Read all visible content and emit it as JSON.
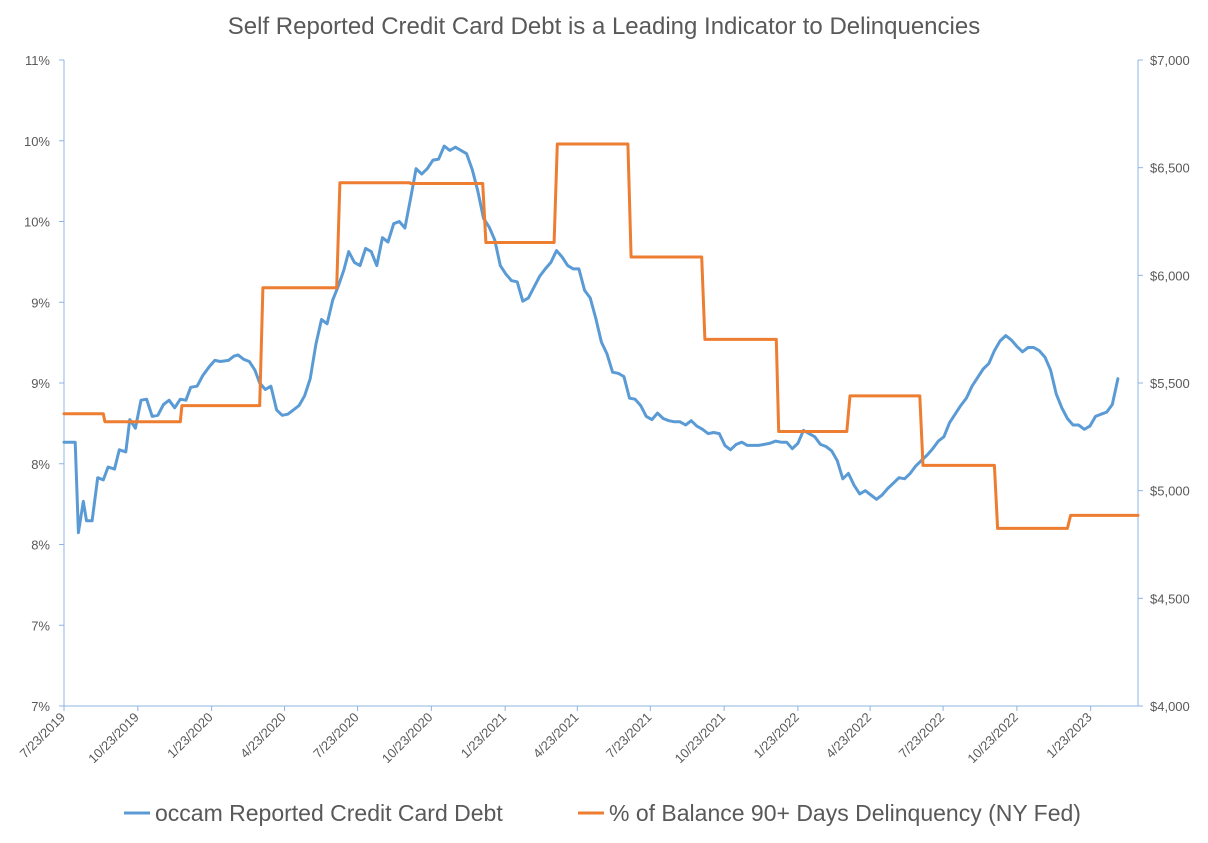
{
  "chart_data": {
    "type": "line",
    "title": "Self Reported Credit Card Debt is a Leading Indicator to Delinquencies",
    "x_type": "date",
    "x_tick_labels": [
      "7/23/2019",
      "10/23/2019",
      "1/23/2020",
      "4/23/2020",
      "7/23/2020",
      "10/23/2020",
      "1/23/2021",
      "4/23/2021",
      "7/23/2021",
      "10/23/2021",
      "1/23/2022",
      "4/23/2022",
      "7/23/2022",
      "10/23/2022",
      "1/23/2023"
    ],
    "xlim": [
      "2019-07-23",
      "2023-03-23"
    ],
    "left_axis": {
      "ylim": [
        6.5,
        10.5
      ],
      "tick_values": [
        6.5,
        7.0,
        7.5,
        8.0,
        8.5,
        9.0,
        9.5,
        10.0,
        10.5
      ],
      "tick_labels": [
        "7%",
        "7%",
        "8%",
        "8%",
        "9%",
        "9%",
        "10%",
        "10%",
        "11%"
      ]
    },
    "right_axis": {
      "ylim": [
        4000,
        7000
      ],
      "tick_values": [
        4000,
        4500,
        5000,
        5500,
        6000,
        6500,
        7000
      ],
      "tick_labels": [
        "$4,000",
        "$4,500",
        "$5,000",
        "$5,500",
        "$6,000",
        "$6,500",
        "$7,000"
      ]
    },
    "grid": false,
    "legend": "bottom",
    "series": [
      {
        "name": "occam Reported Credit Card Debt",
        "axis": "right",
        "color": "#5b9bd5",
        "points": [
          [
            "2019-07-23",
            5225
          ],
          [
            "2019-08-06",
            5225
          ],
          [
            "2019-08-10",
            4805
          ],
          [
            "2019-08-16",
            4950
          ],
          [
            "2019-08-20",
            4860
          ],
          [
            "2019-08-27",
            4860
          ],
          [
            "2019-09-03",
            5060
          ],
          [
            "2019-09-10",
            5050
          ],
          [
            "2019-09-16",
            5110
          ],
          [
            "2019-09-24",
            5100
          ],
          [
            "2019-09-30",
            5190
          ],
          [
            "2019-10-08",
            5180
          ],
          [
            "2019-10-13",
            5330
          ],
          [
            "2019-10-20",
            5290
          ],
          [
            "2019-10-27",
            5420
          ],
          [
            "2019-11-03",
            5425
          ],
          [
            "2019-11-10",
            5345
          ],
          [
            "2019-11-17",
            5350
          ],
          [
            "2019-11-24",
            5400
          ],
          [
            "2019-12-01",
            5420
          ],
          [
            "2019-12-08",
            5385
          ],
          [
            "2019-12-15",
            5425
          ],
          [
            "2019-12-22",
            5420
          ],
          [
            "2019-12-28",
            5480
          ],
          [
            "2020-01-05",
            5485
          ],
          [
            "2020-01-12",
            5535
          ],
          [
            "2020-01-20",
            5575
          ],
          [
            "2020-01-27",
            5605
          ],
          [
            "2020-02-03",
            5600
          ],
          [
            "2020-02-13",
            5605
          ],
          [
            "2020-02-20",
            5625
          ],
          [
            "2020-02-25",
            5630
          ],
          [
            "2020-03-03",
            5610
          ],
          [
            "2020-03-10",
            5600
          ],
          [
            "2020-03-17",
            5560
          ],
          [
            "2020-03-23",
            5500
          ],
          [
            "2020-03-30",
            5470
          ],
          [
            "2020-04-06",
            5485
          ],
          [
            "2020-04-13",
            5375
          ],
          [
            "2020-04-20",
            5350
          ],
          [
            "2020-04-27",
            5355
          ],
          [
            "2020-05-04",
            5375
          ],
          [
            "2020-05-11",
            5395
          ],
          [
            "2020-05-18",
            5440
          ],
          [
            "2020-05-25",
            5520
          ],
          [
            "2020-06-01",
            5680
          ],
          [
            "2020-06-08",
            5795
          ],
          [
            "2020-06-15",
            5775
          ],
          [
            "2020-06-22",
            5885
          ],
          [
            "2020-06-29",
            5950
          ],
          [
            "2020-07-06",
            6025
          ],
          [
            "2020-07-12",
            6110
          ],
          [
            "2020-07-19",
            6060
          ],
          [
            "2020-07-26",
            6045
          ],
          [
            "2020-08-02",
            6125
          ],
          [
            "2020-08-09",
            6110
          ],
          [
            "2020-08-16",
            6045
          ],
          [
            "2020-08-23",
            6175
          ],
          [
            "2020-08-30",
            6155
          ],
          [
            "2020-09-06",
            6240
          ],
          [
            "2020-09-13",
            6250
          ],
          [
            "2020-09-20",
            6220
          ],
          [
            "2020-09-27",
            6355
          ],
          [
            "2020-10-04",
            6495
          ],
          [
            "2020-10-11",
            6470
          ],
          [
            "2020-10-18",
            6495
          ],
          [
            "2020-10-25",
            6535
          ],
          [
            "2020-11-01",
            6540
          ],
          [
            "2020-11-08",
            6600
          ],
          [
            "2020-11-15",
            6580
          ],
          [
            "2020-11-22",
            6595
          ],
          [
            "2020-11-29",
            6580
          ],
          [
            "2020-12-06",
            6565
          ],
          [
            "2020-12-13",
            6490
          ],
          [
            "2020-12-20",
            6390
          ],
          [
            "2020-12-27",
            6265
          ],
          [
            "2021-01-03",
            6225
          ],
          [
            "2021-01-10",
            6165
          ],
          [
            "2021-01-17",
            6045
          ],
          [
            "2021-01-24",
            6005
          ],
          [
            "2021-01-31",
            5975
          ],
          [
            "2021-02-07",
            5970
          ],
          [
            "2021-02-14",
            5880
          ],
          [
            "2021-02-21",
            5895
          ],
          [
            "2021-02-28",
            5945
          ],
          [
            "2021-03-07",
            5995
          ],
          [
            "2021-03-14",
            6030
          ],
          [
            "2021-03-21",
            6060
          ],
          [
            "2021-03-28",
            6115
          ],
          [
            "2021-04-04",
            6085
          ],
          [
            "2021-04-11",
            6045
          ],
          [
            "2021-04-18",
            6030
          ],
          [
            "2021-04-25",
            6030
          ],
          [
            "2021-05-02",
            5930
          ],
          [
            "2021-05-09",
            5895
          ],
          [
            "2021-05-16",
            5800
          ],
          [
            "2021-05-23",
            5690
          ],
          [
            "2021-05-30",
            5635
          ],
          [
            "2021-06-06",
            5550
          ],
          [
            "2021-06-13",
            5545
          ],
          [
            "2021-06-20",
            5530
          ],
          [
            "2021-06-27",
            5430
          ],
          [
            "2021-07-04",
            5425
          ],
          [
            "2021-07-11",
            5395
          ],
          [
            "2021-07-18",
            5345
          ],
          [
            "2021-07-25",
            5330
          ],
          [
            "2021-08-01",
            5360
          ],
          [
            "2021-08-08",
            5335
          ],
          [
            "2021-08-15",
            5325
          ],
          [
            "2021-08-22",
            5320
          ],
          [
            "2021-08-29",
            5320
          ],
          [
            "2021-09-05",
            5305
          ],
          [
            "2021-09-12",
            5325
          ],
          [
            "2021-09-19",
            5300
          ],
          [
            "2021-09-26",
            5285
          ],
          [
            "2021-10-03",
            5265
          ],
          [
            "2021-10-10",
            5270
          ],
          [
            "2021-10-17",
            5265
          ],
          [
            "2021-10-24",
            5210
          ],
          [
            "2021-10-31",
            5190
          ],
          [
            "2021-11-07",
            5215
          ],
          [
            "2021-11-14",
            5225
          ],
          [
            "2021-11-21",
            5210
          ],
          [
            "2021-11-28",
            5210
          ],
          [
            "2021-12-05",
            5210
          ],
          [
            "2021-12-12",
            5215
          ],
          [
            "2021-12-19",
            5220
          ],
          [
            "2021-12-26",
            5230
          ],
          [
            "2022-01-02",
            5225
          ],
          [
            "2022-01-09",
            5225
          ],
          [
            "2022-01-16",
            5195
          ],
          [
            "2022-01-23",
            5220
          ],
          [
            "2022-01-30",
            5280
          ],
          [
            "2022-02-06",
            5265
          ],
          [
            "2022-02-13",
            5250
          ],
          [
            "2022-02-20",
            5215
          ],
          [
            "2022-02-27",
            5205
          ],
          [
            "2022-03-06",
            5185
          ],
          [
            "2022-03-13",
            5140
          ],
          [
            "2022-03-20",
            5055
          ],
          [
            "2022-03-27",
            5080
          ],
          [
            "2022-04-03",
            5025
          ],
          [
            "2022-04-10",
            4985
          ],
          [
            "2022-04-17",
            5000
          ],
          [
            "2022-04-24",
            4980
          ],
          [
            "2022-05-01",
            4960
          ],
          [
            "2022-05-08",
            4980
          ],
          [
            "2022-05-15",
            5010
          ],
          [
            "2022-05-22",
            5035
          ],
          [
            "2022-05-29",
            5060
          ],
          [
            "2022-06-05",
            5055
          ],
          [
            "2022-06-12",
            5080
          ],
          [
            "2022-06-19",
            5115
          ],
          [
            "2022-06-26",
            5140
          ],
          [
            "2022-07-03",
            5165
          ],
          [
            "2022-07-10",
            5195
          ],
          [
            "2022-07-17",
            5230
          ],
          [
            "2022-07-24",
            5250
          ],
          [
            "2022-07-31",
            5315
          ],
          [
            "2022-08-07",
            5355
          ],
          [
            "2022-08-14",
            5395
          ],
          [
            "2022-08-21",
            5430
          ],
          [
            "2022-08-28",
            5485
          ],
          [
            "2022-09-04",
            5525
          ],
          [
            "2022-09-11",
            5565
          ],
          [
            "2022-09-18",
            5590
          ],
          [
            "2022-09-25",
            5650
          ],
          [
            "2022-10-02",
            5695
          ],
          [
            "2022-10-09",
            5720
          ],
          [
            "2022-10-16",
            5700
          ],
          [
            "2022-10-23",
            5670
          ],
          [
            "2022-10-30",
            5645
          ],
          [
            "2022-11-06",
            5665
          ],
          [
            "2022-11-13",
            5665
          ],
          [
            "2022-11-20",
            5650
          ],
          [
            "2022-11-27",
            5620
          ],
          [
            "2022-12-04",
            5560
          ],
          [
            "2022-12-11",
            5450
          ],
          [
            "2022-12-18",
            5385
          ],
          [
            "2022-12-25",
            5335
          ],
          [
            "2023-01-01",
            5305
          ],
          [
            "2023-01-08",
            5305
          ],
          [
            "2023-01-15",
            5285
          ],
          [
            "2023-01-22",
            5300
          ],
          [
            "2023-01-29",
            5345
          ],
          [
            "2023-02-05",
            5355
          ],
          [
            "2023-02-12",
            5365
          ],
          [
            "2023-02-19",
            5400
          ],
          [
            "2023-02-26",
            5520
          ]
        ]
      },
      {
        "name": "% of Balance 90+ Days Delinquency (NY Fed)",
        "axis": "left",
        "color": "#ed7d31",
        "points": [
          [
            "2019-07-23",
            8.31
          ],
          [
            "2019-09-10",
            8.31
          ],
          [
            "2019-09-12",
            8.26
          ],
          [
            "2019-12-15",
            8.26
          ],
          [
            "2019-12-17",
            8.36
          ],
          [
            "2020-03-23",
            8.36
          ],
          [
            "2020-03-27",
            9.09
          ],
          [
            "2020-06-27",
            9.09
          ],
          [
            "2020-07-01",
            9.74
          ],
          [
            "2020-09-26",
            9.74
          ],
          [
            "2020-09-27",
            9.735
          ],
          [
            "2020-12-26",
            9.735
          ],
          [
            "2020-12-30",
            9.37
          ],
          [
            "2021-03-25",
            9.37
          ],
          [
            "2021-03-29",
            9.98
          ],
          [
            "2021-06-25",
            9.98
          ],
          [
            "2021-06-29",
            9.28
          ],
          [
            "2021-09-25",
            9.28
          ],
          [
            "2021-09-29",
            8.77
          ],
          [
            "2021-12-27",
            8.77
          ],
          [
            "2021-12-30",
            8.2
          ],
          [
            "2022-03-25",
            8.2
          ],
          [
            "2022-03-29",
            8.42
          ],
          [
            "2022-06-24",
            8.42
          ],
          [
            "2022-06-28",
            7.99
          ],
          [
            "2022-09-25",
            7.99
          ],
          [
            "2022-09-29",
            7.6
          ],
          [
            "2022-12-25",
            7.6
          ],
          [
            "2022-12-29",
            7.68
          ],
          [
            "2023-03-23",
            7.68
          ]
        ]
      }
    ]
  }
}
